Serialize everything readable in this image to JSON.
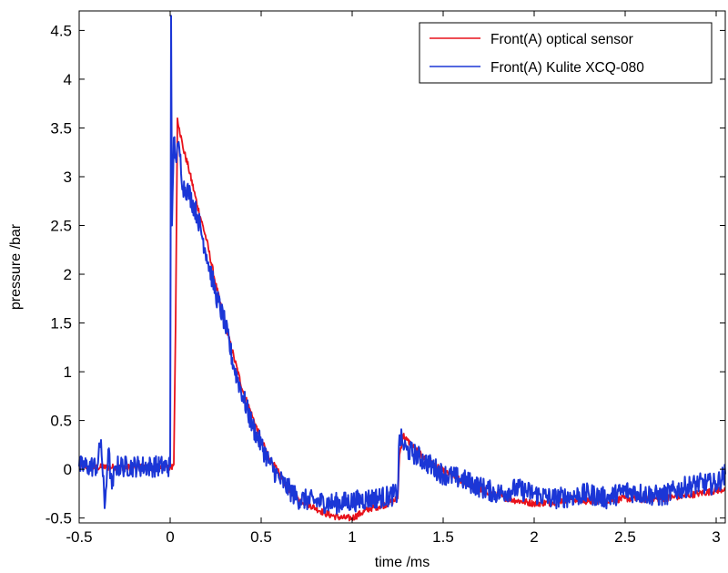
{
  "chart_data": {
    "type": "line",
    "title": "",
    "xlabel": "time /ms",
    "ylabel": "pressure /bar",
    "xlim": [
      -0.5,
      3.05
    ],
    "ylim": [
      -0.55,
      4.7
    ],
    "xticks": [
      -0.5,
      0,
      0.5,
      1,
      1.5,
      2,
      2.5,
      3
    ],
    "xtick_labels": [
      "-0.5",
      "0",
      "0.5",
      "1",
      "1.5",
      "2",
      "2.5",
      "3"
    ],
    "yticks": [
      -0.5,
      0,
      0.5,
      1,
      1.5,
      2,
      2.5,
      3,
      3.5,
      4,
      4.5
    ],
    "ytick_labels": [
      "-0.5",
      "0",
      "0.5",
      "1",
      "1.5",
      "2",
      "2.5",
      "3",
      "3.5",
      "4",
      "4.5"
    ],
    "grid": false,
    "legend": {
      "placement": "top-right"
    },
    "series": [
      {
        "name": "Front(A) optical sensor",
        "color": "#e8121b",
        "x": [
          -0.5,
          -0.4,
          -0.3,
          -0.2,
          -0.1,
          0.0,
          0.02,
          0.03,
          0.04,
          0.05,
          0.07,
          0.1,
          0.15,
          0.2,
          0.25,
          0.3,
          0.35,
          0.4,
          0.45,
          0.5,
          0.55,
          0.6,
          0.65,
          0.7,
          0.75,
          0.8,
          0.85,
          0.9,
          0.95,
          1.0,
          1.05,
          1.1,
          1.15,
          1.2,
          1.25,
          1.26,
          1.28,
          1.3,
          1.35,
          1.4,
          1.5,
          1.6,
          1.7,
          1.8,
          1.9,
          2.0,
          2.1,
          2.2,
          2.3,
          2.4,
          2.5,
          2.6,
          2.7,
          2.8,
          2.9,
          3.0,
          3.05
        ],
        "y": [
          0.02,
          0.02,
          0.02,
          0.02,
          0.02,
          0.02,
          0.05,
          1.5,
          3.6,
          3.5,
          3.3,
          3.1,
          2.7,
          2.35,
          1.9,
          1.5,
          1.15,
          0.8,
          0.55,
          0.3,
          0.1,
          -0.05,
          -0.2,
          -0.3,
          -0.35,
          -0.4,
          -0.45,
          -0.48,
          -0.5,
          -0.5,
          -0.45,
          -0.4,
          -0.38,
          -0.35,
          -0.3,
          0.15,
          0.35,
          0.3,
          0.2,
          0.1,
          -0.02,
          -0.12,
          -0.2,
          -0.27,
          -0.32,
          -0.35,
          -0.34,
          -0.3,
          -0.33,
          -0.32,
          -0.3,
          -0.31,
          -0.3,
          -0.28,
          -0.25,
          -0.22,
          -0.2
        ]
      },
      {
        "name": "Front(A) Kulite XCQ-080",
        "color": "#1b36d6",
        "x": [
          -0.5,
          -0.45,
          -0.4,
          -0.38,
          -0.36,
          -0.34,
          -0.32,
          -0.3,
          -0.2,
          -0.1,
          0.0,
          0.005,
          0.01,
          0.02,
          0.03,
          0.05,
          0.07,
          0.1,
          0.15,
          0.2,
          0.25,
          0.3,
          0.35,
          0.4,
          0.45,
          0.5,
          0.55,
          0.6,
          0.65,
          0.7,
          0.8,
          0.9,
          1.0,
          1.1,
          1.2,
          1.25,
          1.26,
          1.28,
          1.3,
          1.35,
          1.4,
          1.5,
          1.6,
          1.7,
          1.8,
          1.9,
          2.0,
          2.1,
          2.2,
          2.3,
          2.4,
          2.5,
          2.6,
          2.7,
          2.8,
          2.9,
          3.0,
          3.05
        ],
        "y": [
          0.03,
          0.03,
          0.03,
          0.3,
          -0.4,
          0.2,
          -0.2,
          0.03,
          0.03,
          0.03,
          0.03,
          4.65,
          2.5,
          3.4,
          3.2,
          3.3,
          2.9,
          2.85,
          2.6,
          2.2,
          1.8,
          1.5,
          1.05,
          0.75,
          0.45,
          0.25,
          0.05,
          -0.1,
          -0.2,
          -0.3,
          -0.33,
          -0.35,
          -0.33,
          -0.3,
          -0.28,
          -0.25,
          0.35,
          0.25,
          0.2,
          0.15,
          0.08,
          -0.05,
          -0.1,
          -0.18,
          -0.25,
          -0.2,
          -0.25,
          -0.3,
          -0.28,
          -0.25,
          -0.3,
          -0.22,
          -0.25,
          -0.28,
          -0.2,
          -0.15,
          -0.15,
          -0.05
        ]
      }
    ]
  }
}
